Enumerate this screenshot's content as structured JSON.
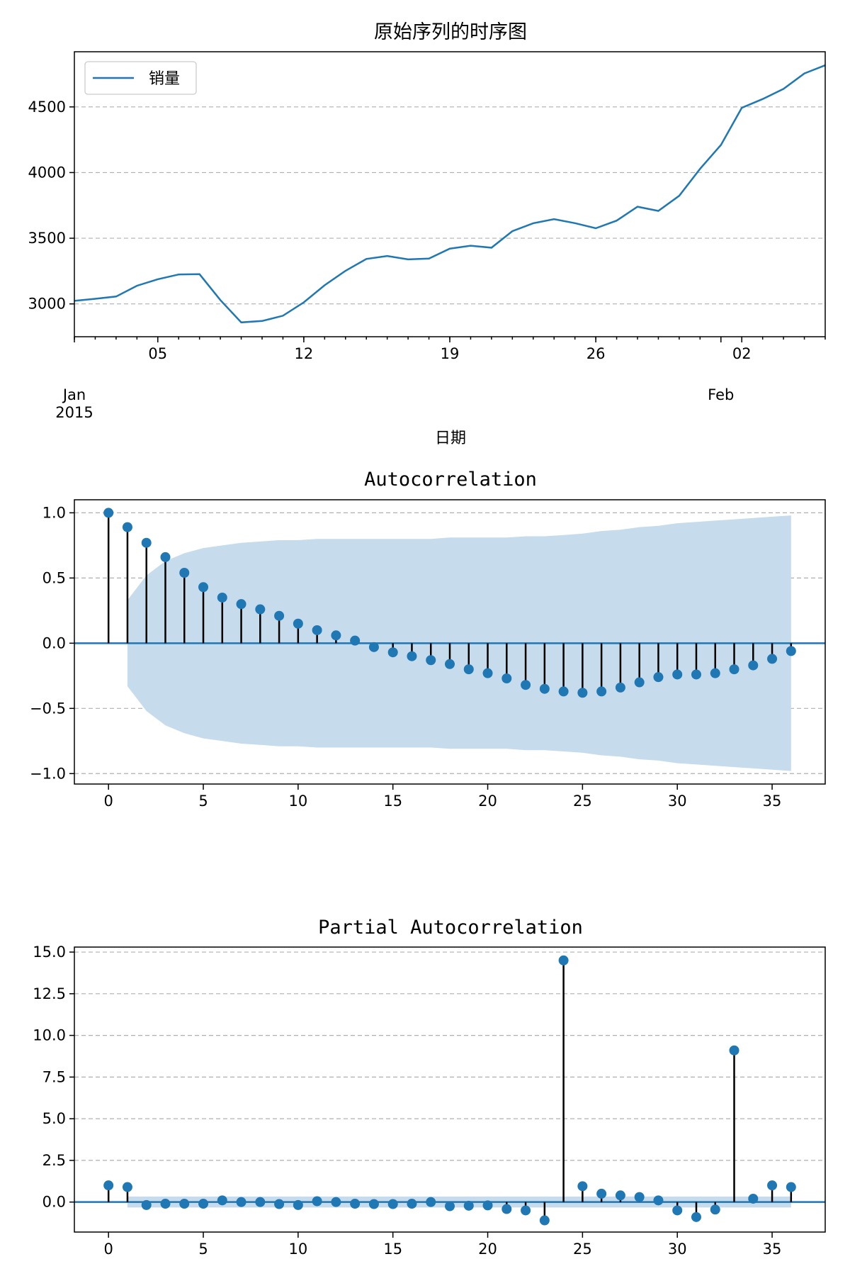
{
  "colors": {
    "series": "#1f77b4",
    "band": "#c6dbec",
    "stem": "#000000",
    "grid": "#b0b0b0"
  },
  "chart_data": [
    {
      "type": "line",
      "title": "原始序列的时序图",
      "xlabel": "日期",
      "ylabel": "",
      "legend": {
        "labels": [
          "销量"
        ],
        "placement": "top-left"
      },
      "grid": "horizontal dashed",
      "x_range": [
        "2015-01-01",
        "2015-02-06"
      ],
      "ylim": [
        2750,
        4920
      ],
      "y_ticks": [
        3000,
        3500,
        4000,
        4500
      ],
      "x_major_ticks": [
        {
          "date": "2015-01-05",
          "label": "05"
        },
        {
          "date": "2015-01-12",
          "label": "12"
        },
        {
          "date": "2015-01-19",
          "label": "19"
        },
        {
          "date": "2015-01-26",
          "label": "26"
        },
        {
          "date": "2015-02-02",
          "label": "02"
        }
      ],
      "x_month_labels": [
        {
          "date": "2015-01-01",
          "line1": "Jan",
          "line2": "2015"
        },
        {
          "date": "2015-02-01",
          "line1": "Feb",
          "line2": ""
        }
      ],
      "series": [
        {
          "name": "销量",
          "x": [
            "2015-01-01",
            "2015-01-02",
            "2015-01-03",
            "2015-01-04",
            "2015-01-05",
            "2015-01-06",
            "2015-01-07",
            "2015-01-08",
            "2015-01-09",
            "2015-01-10",
            "2015-01-11",
            "2015-01-12",
            "2015-01-13",
            "2015-01-14",
            "2015-01-15",
            "2015-01-16",
            "2015-01-17",
            "2015-01-18",
            "2015-01-19",
            "2015-01-20",
            "2015-01-21",
            "2015-01-22",
            "2015-01-23",
            "2015-01-24",
            "2015-01-25",
            "2015-01-26",
            "2015-01-27",
            "2015-01-28",
            "2015-01-29",
            "2015-01-30",
            "2015-01-31",
            "2015-02-01",
            "2015-02-02",
            "2015-02-03",
            "2015-02-04",
            "2015-02-05",
            "2015-02-06"
          ],
          "values": [
            3023,
            3039,
            3056,
            3138,
            3188,
            3224,
            3226,
            3029,
            2859,
            2870,
            2910,
            3012,
            3142,
            3252,
            3342,
            3365,
            3339,
            3345,
            3421,
            3443,
            3428,
            3554,
            3614,
            3645,
            3615,
            3576,
            3634,
            3740,
            3708,
            3823,
            4028,
            4210,
            4493,
            4560,
            4637,
            4755,
            4817
          ]
        }
      ]
    },
    {
      "type": "stem",
      "title": "Autocorrelation",
      "xlabel": "",
      "ylabel": "",
      "grid": "horizontal dashed",
      "xlim": [
        -1.8,
        37.8
      ],
      "ylim": [
        -1.08,
        1.1
      ],
      "x_ticks": [
        0,
        5,
        10,
        15,
        20,
        25,
        30,
        35
      ],
      "y_ticks": [
        {
          "value": 1.0,
          "label": "1.0"
        },
        {
          "value": 0.5,
          "label": "0.5"
        },
        {
          "value": 0.0,
          "label": "0.0"
        },
        {
          "value": -0.5,
          "label": "−0.5"
        },
        {
          "value": -1.0,
          "label": "−1.0"
        }
      ],
      "lags": [
        0,
        1,
        2,
        3,
        4,
        5,
        6,
        7,
        8,
        9,
        10,
        11,
        12,
        13,
        14,
        15,
        16,
        17,
        18,
        19,
        20,
        21,
        22,
        23,
        24,
        25,
        26,
        27,
        28,
        29,
        30,
        31,
        32,
        33,
        34,
        35,
        36
      ],
      "values": [
        1.0,
        0.89,
        0.77,
        0.66,
        0.54,
        0.43,
        0.35,
        0.3,
        0.26,
        0.21,
        0.15,
        0.1,
        0.06,
        0.02,
        -0.03,
        -0.07,
        -0.1,
        -0.13,
        -0.16,
        -0.2,
        -0.23,
        -0.27,
        -0.32,
        -0.35,
        -0.37,
        -0.38,
        -0.37,
        -0.34,
        -0.3,
        -0.26,
        -0.24,
        -0.24,
        -0.23,
        -0.2,
        -0.17,
        -0.12,
        -0.06
      ],
      "confidence_band": {
        "lags": [
          1,
          2,
          3,
          4,
          5,
          6,
          7,
          8,
          9,
          10,
          11,
          12,
          13,
          14,
          15,
          16,
          17,
          18,
          19,
          20,
          21,
          22,
          23,
          24,
          25,
          26,
          27,
          28,
          29,
          30,
          31,
          32,
          33,
          34,
          35,
          36
        ],
        "upper": [
          0.33,
          0.52,
          0.63,
          0.69,
          0.73,
          0.75,
          0.77,
          0.78,
          0.79,
          0.79,
          0.8,
          0.8,
          0.8,
          0.8,
          0.8,
          0.8,
          0.8,
          0.81,
          0.81,
          0.81,
          0.81,
          0.82,
          0.82,
          0.83,
          0.84,
          0.86,
          0.87,
          0.89,
          0.9,
          0.92,
          0.93,
          0.94,
          0.95,
          0.96,
          0.97,
          0.98
        ]
      }
    },
    {
      "type": "stem",
      "title": "Partial Autocorrelation",
      "xlabel": "",
      "ylabel": "",
      "grid": "horizontal dashed",
      "xlim": [
        -1.8,
        37.8
      ],
      "ylim": [
        -1.8,
        15.3
      ],
      "x_ticks": [
        0,
        5,
        10,
        15,
        20,
        25,
        30,
        35
      ],
      "y_ticks": [
        {
          "value": 15.0,
          "label": "15.0"
        },
        {
          "value": 12.5,
          "label": "12.5"
        },
        {
          "value": 10.0,
          "label": "10.0"
        },
        {
          "value": 7.5,
          "label": "7.5"
        },
        {
          "value": 5.0,
          "label": "5.0"
        },
        {
          "value": 2.5,
          "label": "2.5"
        },
        {
          "value": 0.0,
          "label": "0.0"
        }
      ],
      "lags": [
        0,
        1,
        2,
        3,
        4,
        5,
        6,
        7,
        8,
        9,
        10,
        11,
        12,
        13,
        14,
        15,
        16,
        17,
        18,
        19,
        20,
        21,
        22,
        23,
        24,
        25,
        26,
        27,
        28,
        29,
        30,
        31,
        32,
        33,
        34,
        35,
        36
      ],
      "values": [
        1.0,
        0.9,
        -0.18,
        -0.1,
        -0.1,
        -0.1,
        0.1,
        0.0,
        0.0,
        -0.12,
        -0.18,
        0.05,
        0.0,
        -0.1,
        -0.12,
        -0.12,
        -0.1,
        0.0,
        -0.25,
        -0.22,
        -0.2,
        -0.42,
        -0.5,
        -1.1,
        14.5,
        0.95,
        0.5,
        0.4,
        0.3,
        0.1,
        -0.5,
        -0.9,
        -0.45,
        9.1,
        0.2,
        1.0,
        0.9
      ],
      "confidence_band": {
        "lags": [
          1,
          36
        ],
        "upper": [
          0.33,
          0.33
        ]
      }
    }
  ]
}
